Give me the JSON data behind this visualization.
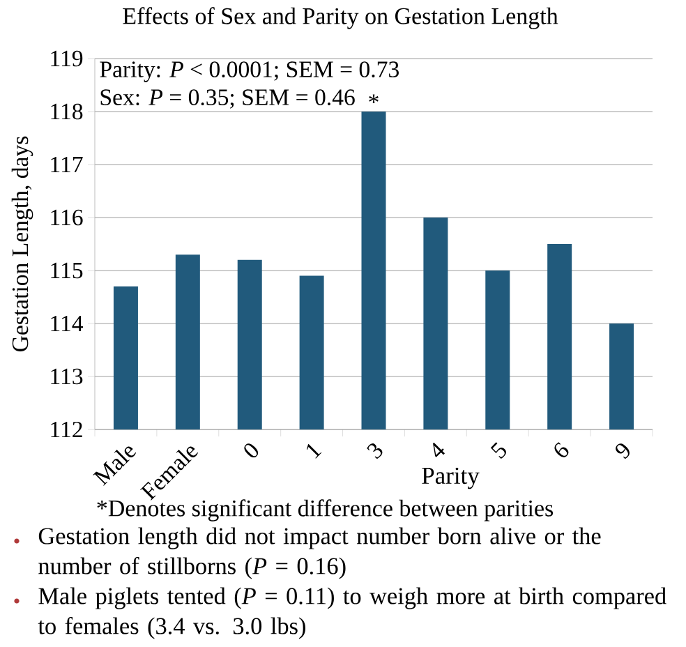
{
  "chart_data": {
    "type": "bar",
    "title": "Effects of Sex and Parity on Gestation Length",
    "xlabel": "Parity",
    "ylabel": "Gestation Length, days",
    "categories": [
      "Male",
      "Female",
      "0",
      "1",
      "3",
      "4",
      "5",
      "6",
      "9"
    ],
    "values": [
      114.7,
      115.3,
      115.2,
      114.9,
      118.0,
      116.0,
      115.0,
      115.5,
      114.0
    ],
    "color": "#215a7c",
    "ylim": [
      112,
      119
    ],
    "yticks": [
      112,
      113,
      114,
      115,
      116,
      117,
      118,
      119
    ],
    "grid": "y",
    "annotations": [
      "Parity: *P* < 0.0001; SEM = 0.73",
      "Sex: *P* = 0.35; SEM = 0.46",
      {
        "text": "*",
        "x": "3",
        "y": 118.0
      },
      "*Denotes significant difference between parities",
      "Gestation length did not impact number born alive or the number of stillborns (*P* = 0.16)",
      "Male piglets tented (*P* = 0.11) to weigh more at birth compared to females (3.4 vs. 3.0 lbs)"
    ]
  }
}
